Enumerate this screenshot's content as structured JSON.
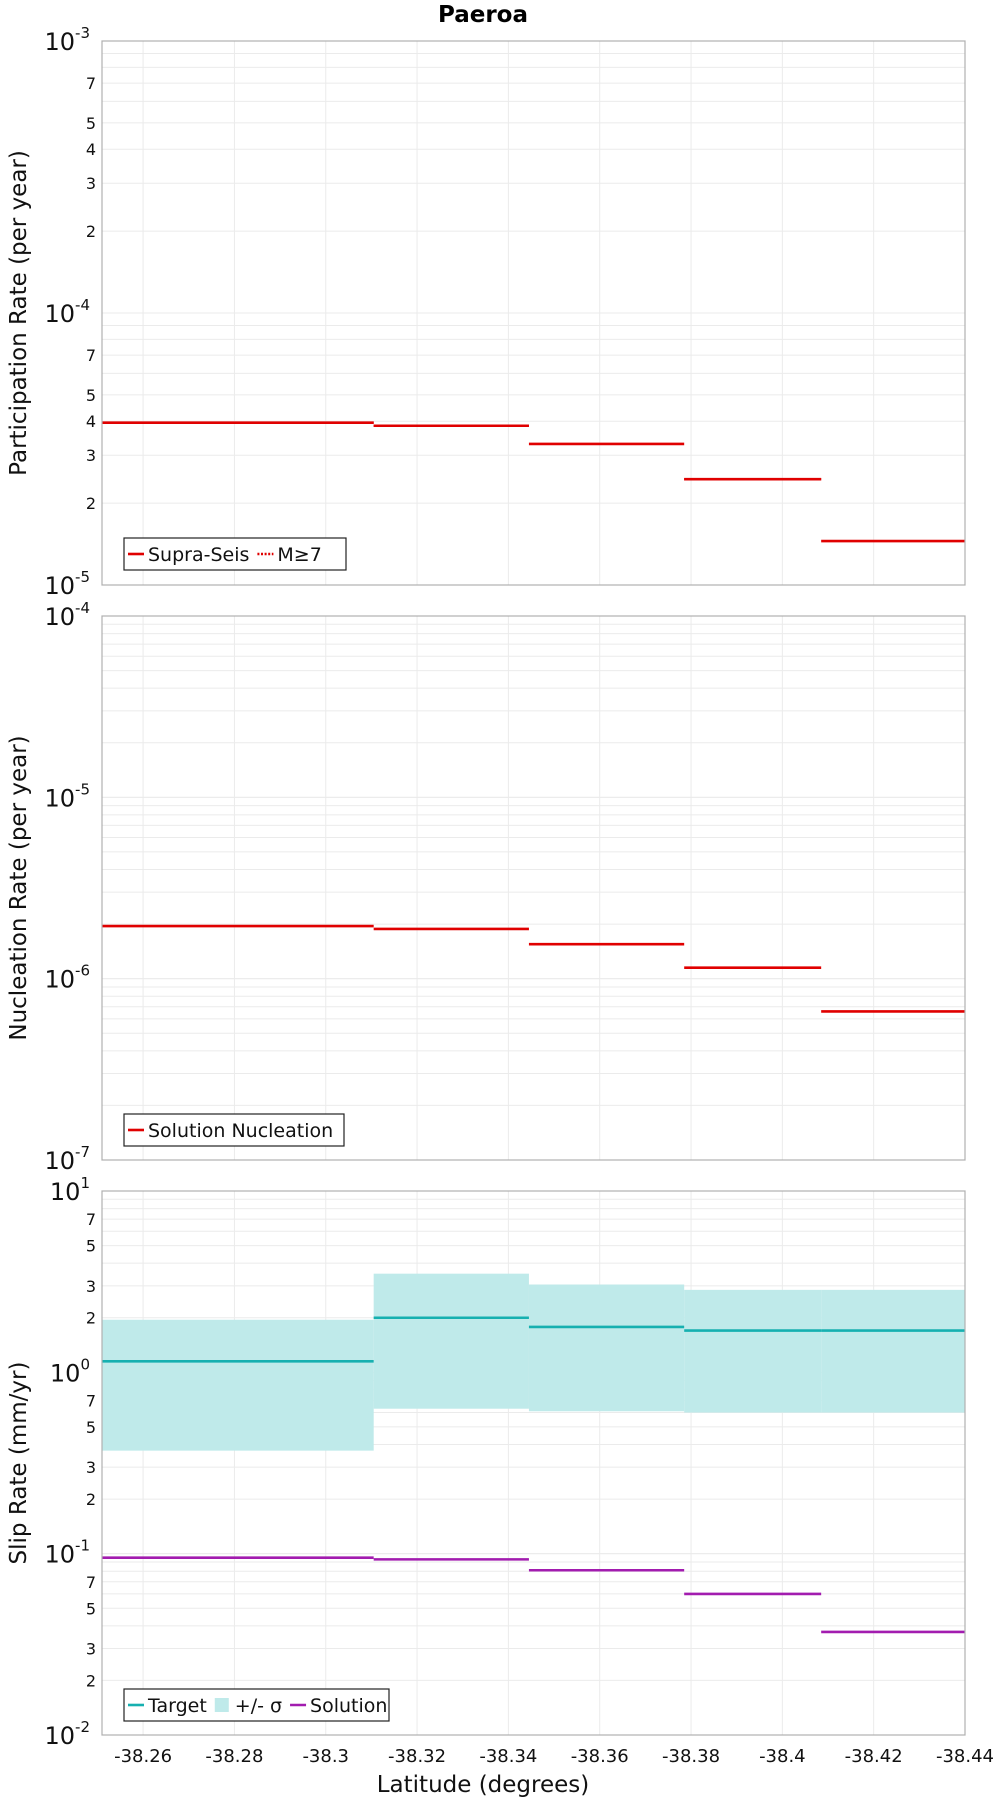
{
  "chart_data": {
    "type": "line",
    "title": "Paeroa",
    "xlabel": "Latitude (degrees)",
    "x_ticks": [
      "-38.26",
      "-38.28",
      "-38.3",
      "-38.32",
      "-38.34",
      "-38.36",
      "-38.38",
      "-38.4",
      "-38.42",
      "-38.44"
    ],
    "xlim": [
      -38.251,
      -38.44
    ],
    "x_reversed": true,
    "segments": [
      [
        -38.251,
        -38.3105
      ],
      [
        -38.3105,
        -38.3445
      ],
      [
        -38.3445,
        -38.3785
      ],
      [
        -38.3785,
        -38.4085
      ],
      [
        -38.4085,
        -38.44
      ]
    ],
    "panels": [
      {
        "id": "participation",
        "ylabel": "Participation Rate (per year)",
        "yscale": "log",
        "ylim": [
          1e-05,
          0.001
        ],
        "decade_labels": [
          {
            "base": "10",
            "exp": "-5"
          },
          {
            "base": "10",
            "exp": "-4"
          },
          {
            "base": "10",
            "exp": "-3"
          }
        ],
        "minor_labels": [
          "2",
          "3",
          "4",
          "5",
          "7"
        ],
        "legend": {
          "position": "bottom-left",
          "entries": [
            "Supra-Seis",
            "M≥7"
          ]
        },
        "series": [
          {
            "name": "Supra-Seis",
            "style": "solid",
            "color": "#e00000",
            "values": [
              3.95e-05,
              3.85e-05,
              3.3e-05,
              2.45e-05,
              1.45e-05
            ]
          },
          {
            "name": "M≥7",
            "style": "dotted",
            "color": "#e00000",
            "values": [
              3.95e-05,
              3.85e-05,
              null,
              2.45e-05,
              null
            ]
          }
        ]
      },
      {
        "id": "nucleation",
        "ylabel": "Nucleation Rate (per year)",
        "yscale": "log",
        "ylim": [
          1e-07,
          0.0001
        ],
        "decade_labels": [
          {
            "base": "10",
            "exp": "-7"
          },
          {
            "base": "10",
            "exp": "-6"
          },
          {
            "base": "10",
            "exp": "-5"
          },
          {
            "base": "10",
            "exp": "-4"
          }
        ],
        "minor_labels": [],
        "legend": {
          "position": "bottom-left",
          "entries": [
            "Solution Nucleation"
          ]
        },
        "series": [
          {
            "name": "Solution Nucleation",
            "style": "solid",
            "color": "#e00000",
            "values": [
              1.95e-06,
              1.88e-06,
              1.55e-06,
              1.15e-06,
              6.6e-07
            ]
          }
        ]
      },
      {
        "id": "slip",
        "ylabel": "Slip Rate (mm/yr)",
        "yscale": "log",
        "ylim": [
          0.01,
          10
        ],
        "decade_labels": [
          {
            "base": "10",
            "exp": "-2"
          },
          {
            "base": "10",
            "exp": "-1"
          },
          {
            "base": "10",
            "exp": "0"
          },
          {
            "base": "10",
            "exp": "1"
          }
        ],
        "minor_labels": [
          "2",
          "3",
          "5",
          "7"
        ],
        "legend": {
          "position": "bottom-left",
          "entries": [
            "Target",
            "+/- σ",
            "Solution"
          ]
        },
        "band": {
          "name": "+/- σ",
          "color": "#bfeaea",
          "lower": [
            0.37,
            0.63,
            0.61,
            0.6,
            0.6
          ],
          "upper": [
            1.95,
            3.5,
            3.05,
            2.85,
            2.85
          ]
        },
        "series": [
          {
            "name": "Target",
            "style": "solid",
            "color": "#16b0b0",
            "values": [
              1.15,
              2.0,
              1.78,
              1.7,
              1.7
            ]
          },
          {
            "name": "Solution",
            "style": "solid",
            "color": "#a21caf",
            "values": [
              0.095,
              0.093,
              0.081,
              0.06,
              0.037
            ]
          }
        ]
      }
    ]
  }
}
